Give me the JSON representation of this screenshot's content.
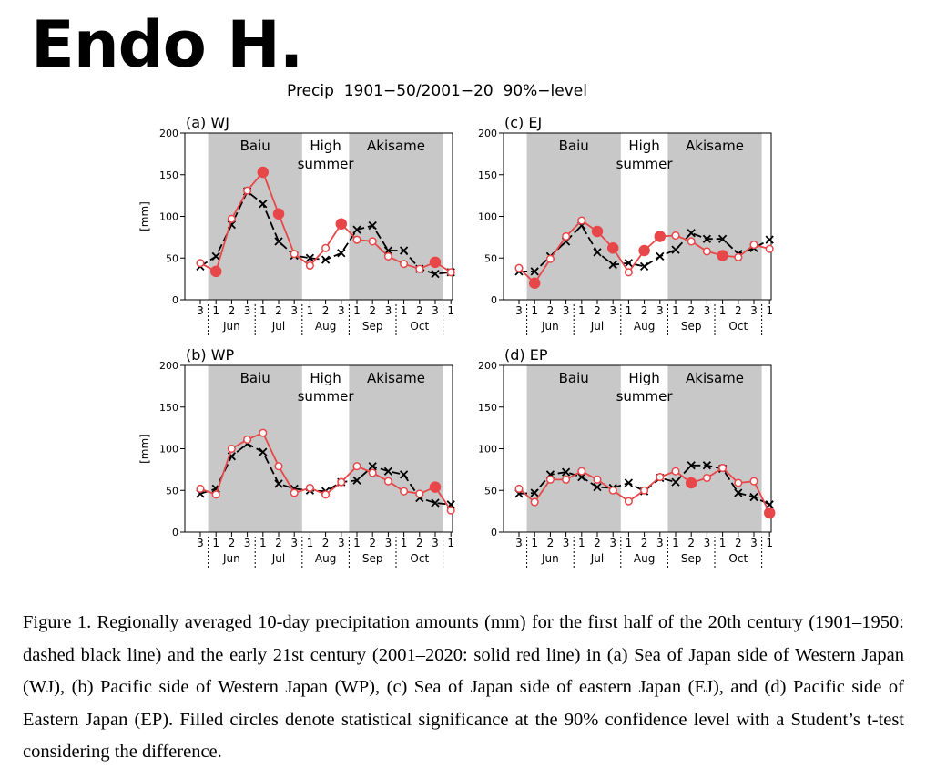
{
  "header": {
    "author": "Endo H.",
    "title": "Precip  1901−50/2001−20  90%−level"
  },
  "caption": "Figure 1. Regionally averaged 10-day precipitation amounts (mm) for the first half of the 20th century (1901–1950: dashed black line) and the early 21st century (2001–2020: solid red line) in (a) Sea of Japan side of Western Japan (WJ), (b) Pacific side of Western Japan (WP), (c) Sea of Japan side of eastern Japan (EJ), and (d) Pacific side of Eastern Japan (EP). Filled circles denote statistical significance at the 90% confidence level with a Student’s t-test considering the difference.",
  "colors": {
    "recent": "#e8474a",
    "past": "#000000",
    "shade": "#c8c8c8"
  },
  "chart_data": [
    {
      "type": "line",
      "title": "(a) WJ",
      "ylabel": "[mm]",
      "ylim": [
        0,
        200
      ],
      "yticks": [
        0,
        50,
        100,
        150,
        200
      ],
      "x_ticks": [
        "3",
        "1",
        "2",
        "3",
        "1",
        "2",
        "3",
        "1",
        "2",
        "3",
        "1",
        "2",
        "3",
        "1",
        "2",
        "3",
        "1"
      ],
      "months": [
        "Jun",
        "Jul",
        "Aug",
        "Sep",
        "Oct"
      ],
      "period_labels": [
        "Baiu",
        "High summer",
        "Akisame"
      ],
      "series": [
        {
          "name": "1901–1950",
          "style": "dashed-cross",
          "values": [
            40,
            52,
            90,
            130,
            115,
            70,
            53,
            50,
            48,
            56,
            84,
            89,
            59,
            59,
            37,
            31,
            33
          ]
        },
        {
          "name": "2001–2020",
          "style": "solid-circle",
          "values": [
            44,
            34,
            97,
            131,
            153,
            103,
            55,
            41,
            62,
            91,
            72,
            70,
            52,
            43,
            37,
            45,
            33
          ],
          "significant": [
            false,
            true,
            false,
            false,
            true,
            true,
            false,
            false,
            false,
            true,
            false,
            false,
            false,
            false,
            false,
            true,
            false
          ]
        }
      ]
    },
    {
      "type": "line",
      "title": "(c) EJ",
      "ylabel": "",
      "ylim": [
        0,
        200
      ],
      "yticks": [
        0,
        50,
        100,
        150,
        200
      ],
      "x_ticks": [
        "3",
        "1",
        "2",
        "3",
        "1",
        "2",
        "3",
        "1",
        "2",
        "3",
        "1",
        "2",
        "3",
        "1",
        "2",
        "3",
        "1"
      ],
      "months": [
        "Jun",
        "Jul",
        "Aug",
        "Sep",
        "Oct"
      ],
      "period_labels": [
        "Baiu",
        "High summer",
        "Akisame"
      ],
      "series": [
        {
          "name": "1901–1950",
          "style": "dashed-cross",
          "values": [
            34,
            34,
            52,
            70,
            89,
            57,
            42,
            44,
            40,
            52,
            60,
            80,
            73,
            73,
            55,
            62,
            72
          ]
        },
        {
          "name": "2001–2020",
          "style": "solid-circle",
          "values": [
            38,
            20,
            49,
            76,
            95,
            82,
            62,
            33,
            59,
            76,
            77,
            70,
            58,
            53,
            51,
            66,
            61
          ],
          "significant": [
            false,
            true,
            false,
            false,
            false,
            true,
            true,
            false,
            true,
            true,
            false,
            false,
            false,
            true,
            false,
            false,
            false
          ]
        }
      ]
    },
    {
      "type": "line",
      "title": "(b) WP",
      "ylabel": "[mm]",
      "ylim": [
        0,
        200
      ],
      "yticks": [
        0,
        50,
        100,
        150,
        200
      ],
      "x_ticks": [
        "3",
        "1",
        "2",
        "3",
        "1",
        "2",
        "3",
        "1",
        "2",
        "3",
        "1",
        "2",
        "3",
        "1",
        "2",
        "3",
        "1"
      ],
      "months": [
        "Jun",
        "Jul",
        "Aug",
        "Sep",
        "Oct"
      ],
      "period_labels": [
        "Baiu",
        "High summer",
        "Akisame"
      ],
      "series": [
        {
          "name": "1901–1950",
          "style": "dashed-cross",
          "values": [
            46,
            52,
            91,
            106,
            96,
            58,
            52,
            50,
            49,
            60,
            62,
            79,
            73,
            69,
            41,
            35,
            33
          ]
        },
        {
          "name": "2001–2020",
          "style": "solid-circle",
          "values": [
            52,
            45,
            100,
            111,
            119,
            79,
            47,
            53,
            45,
            60,
            79,
            71,
            61,
            49,
            46,
            54,
            26
          ],
          "significant": [
            false,
            false,
            false,
            false,
            false,
            false,
            false,
            false,
            false,
            false,
            false,
            false,
            false,
            false,
            false,
            true,
            false
          ]
        }
      ]
    },
    {
      "type": "line",
      "title": "(d) EP",
      "ylabel": "",
      "ylim": [
        0,
        200
      ],
      "yticks": [
        0,
        50,
        100,
        150,
        200
      ],
      "x_ticks": [
        "3",
        "1",
        "2",
        "3",
        "1",
        "2",
        "3",
        "1",
        "2",
        "3",
        "1",
        "2",
        "3",
        "1",
        "2",
        "3",
        "1"
      ],
      "months": [
        "Jun",
        "Jul",
        "Aug",
        "Sep",
        "Oct"
      ],
      "period_labels": [
        "Baiu",
        "High summer",
        "Akisame"
      ],
      "series": [
        {
          "name": "1901–1950",
          "style": "dashed-cross",
          "values": [
            46,
            47,
            69,
            72,
            66,
            54,
            53,
            59,
            49,
            65,
            60,
            80,
            80,
            76,
            47,
            42,
            33
          ]
        },
        {
          "name": "2001–2020",
          "style": "solid-circle",
          "values": [
            52,
            36,
            63,
            63,
            73,
            63,
            50,
            37,
            50,
            66,
            73,
            59,
            65,
            77,
            59,
            61,
            23
          ],
          "significant": [
            false,
            false,
            false,
            false,
            false,
            false,
            false,
            false,
            false,
            false,
            false,
            true,
            false,
            false,
            false,
            false,
            true
          ]
        }
      ]
    }
  ]
}
